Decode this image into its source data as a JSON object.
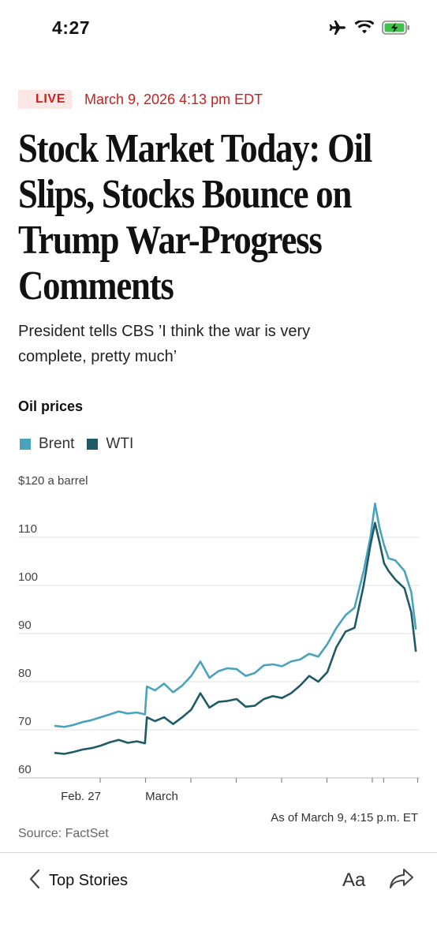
{
  "status_bar": {
    "time": "4:27"
  },
  "article": {
    "live_label": "LIVE",
    "timestamp": "March 9, 2026 4:13 pm EDT",
    "headline_lines": [
      "Stock Market Today: Oil",
      "Slips, Stocks Bounce on",
      "Trump War-Progress",
      "Comments"
    ],
    "dek_lines": [
      "President tells CBS ’I think the war is very",
      "complete, pretty much’"
    ]
  },
  "chart": {
    "title": "Oil prices",
    "legend": [
      {
        "name": "Brent",
        "color": "#4aa3bd"
      },
      {
        "name": "WTI",
        "color": "#1f5a66"
      }
    ],
    "y_unit_label": "$120 a barrel",
    "as_of": "As of March 9, 4:15 p.m. ET",
    "source": "Source: FactSet"
  },
  "chart_data": {
    "type": "line",
    "ylim": [
      60,
      120
    ],
    "yticks": [
      60,
      70,
      80,
      90,
      100,
      110,
      120
    ],
    "ytick_labels": [
      "60",
      "70",
      "80",
      "90",
      "100",
      "110",
      "$120 a barrel"
    ],
    "xlim": [
      0,
      8
    ],
    "xticks": [
      1,
      2,
      3,
      4,
      5,
      6,
      7,
      7.25,
      8
    ],
    "xtick_labels": [
      {
        "x": 1,
        "text": "Feb. 27"
      },
      {
        "x": 2,
        "text": "March"
      }
    ],
    "series": [
      {
        "name": "Brent",
        "color": "#4aa3bd",
        "x": [
          0,
          0.2,
          0.4,
          0.6,
          0.8,
          1,
          1.2,
          1.4,
          1.6,
          1.8,
          1.98,
          2.02,
          2.2,
          2.4,
          2.6,
          2.8,
          3,
          3.2,
          3.4,
          3.6,
          3.8,
          4,
          4.2,
          4.4,
          4.6,
          4.8,
          5,
          5.2,
          5.4,
          5.6,
          5.8,
          6,
          6.2,
          6.4,
          6.6,
          6.8,
          6.95,
          7.05,
          7.15,
          7.25,
          7.35,
          7.5,
          7.7,
          7.85,
          7.95
        ],
        "y": [
          70.8,
          70.6,
          71.0,
          71.6,
          72.0,
          72.6,
          73.2,
          73.8,
          73.4,
          73.6,
          73.2,
          79.0,
          78.2,
          79.6,
          77.8,
          79.2,
          81.2,
          84.2,
          80.8,
          82.2,
          82.8,
          82.6,
          81.2,
          81.8,
          83.4,
          83.6,
          83.2,
          84.2,
          84.6,
          85.8,
          85.2,
          87.8,
          91.2,
          93.8,
          95.4,
          103.0,
          110.0,
          117.0,
          112.0,
          108.4,
          105.6,
          105.2,
          103.0,
          98.6,
          91.0
        ]
      },
      {
        "name": "WTI",
        "color": "#1f5a66",
        "x": [
          0,
          0.2,
          0.4,
          0.6,
          0.8,
          1,
          1.2,
          1.4,
          1.6,
          1.8,
          1.98,
          2.02,
          2.2,
          2.4,
          2.6,
          2.8,
          3,
          3.2,
          3.4,
          3.6,
          3.8,
          4,
          4.2,
          4.4,
          4.6,
          4.8,
          5,
          5.2,
          5.4,
          5.6,
          5.8,
          6,
          6.2,
          6.4,
          6.6,
          6.8,
          6.95,
          7.05,
          7.15,
          7.25,
          7.35,
          7.5,
          7.7,
          7.85,
          7.95
        ],
        "y": [
          65.2,
          65.0,
          65.4,
          65.9,
          66.2,
          66.7,
          67.4,
          67.9,
          67.3,
          67.6,
          67.2,
          72.6,
          71.8,
          72.6,
          71.2,
          72.6,
          74.2,
          77.6,
          74.6,
          75.8,
          76.0,
          76.4,
          74.8,
          75.0,
          76.4,
          77.0,
          76.6,
          77.6,
          79.2,
          81.2,
          80.0,
          82.0,
          87.2,
          90.4,
          91.2,
          100.0,
          108.4,
          113.0,
          109.0,
          104.6,
          103.0,
          101.2,
          99.4,
          94.4,
          86.4
        ]
      }
    ]
  }
}
